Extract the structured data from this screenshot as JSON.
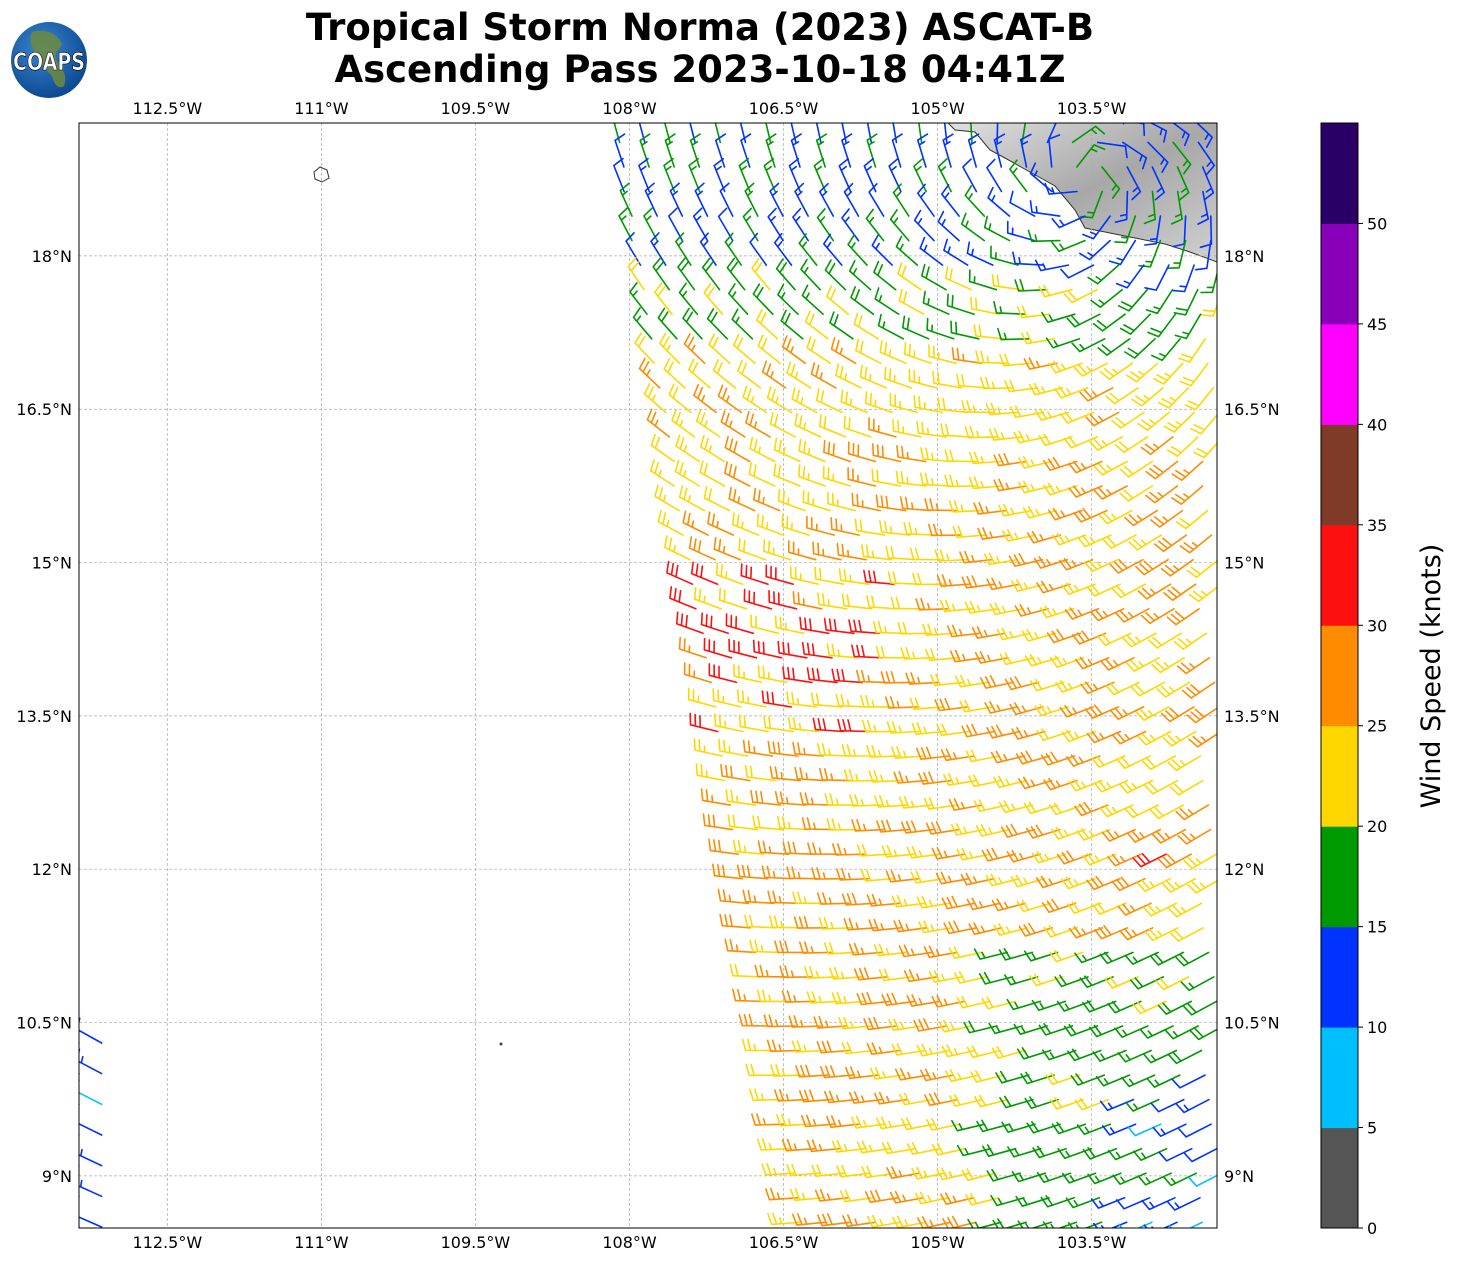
{
  "header": {
    "title_line1": "Tropical Storm Norma (2023) ASCAT-B",
    "title_line2": "Ascending Pass 2023-10-18 04:41Z",
    "logo_text": "COAPS"
  },
  "chart_data": {
    "type": "wind-barb-map",
    "title": "Tropical Storm Norma (2023) ASCAT-B Ascending Pass 2023-10-18 04:41Z",
    "lon_range": [
      -113.36,
      -102.28
    ],
    "lat_range": [
      8.49,
      19.3
    ],
    "x_ticks": [
      -112.5,
      -111,
      -109.5,
      -108,
      -106.5,
      -105,
      -103.5
    ],
    "x_tick_labels": [
      "112.5°W",
      "111°W",
      "109.5°W",
      "108°W",
      "106.5°W",
      "105°W",
      "103.5°W"
    ],
    "y_ticks": [
      18,
      16.5,
      15,
      13.5,
      12,
      10.5,
      9
    ],
    "y_tick_labels": [
      "18°N",
      "16.5°N",
      "15°N",
      "13.5°N",
      "12°N",
      "10.5°N",
      "9°N"
    ],
    "grid": true,
    "colorbar": {
      "label": "Wind Speed (knots)",
      "ticks": [
        "0",
        "5",
        "10",
        "15",
        "20",
        "25",
        "30",
        "35",
        "40",
        "45",
        "50"
      ],
      "bins": [
        0,
        5,
        10,
        15,
        20,
        25,
        30,
        35,
        40,
        45,
        50,
        55
      ],
      "colors": [
        "#555555",
        "#00bfff",
        "#0033ff",
        "#009900",
        "#ffd700",
        "#ff8c00",
        "#ff1010",
        "#803a28",
        "#ff00ff",
        "#8a00b8",
        "#2a0066"
      ]
    }
  }
}
